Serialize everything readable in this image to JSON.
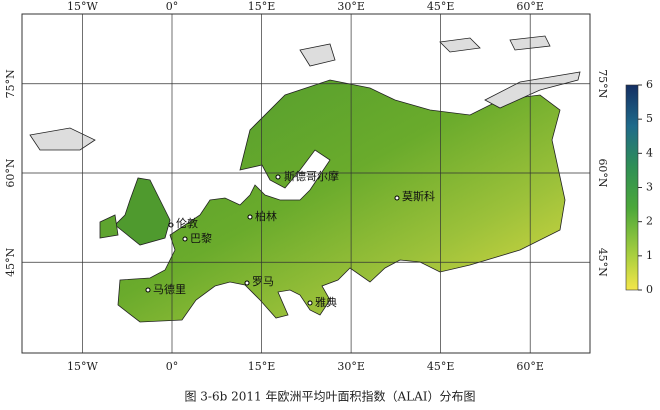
{
  "map": {
    "caption": "图 3-6b 2011 年欧洲平均叶面积指数（ALAI）分布图",
    "longitude_ticks": [
      {
        "value": -15,
        "label": "15°W"
      },
      {
        "value": 0,
        "label": "0°"
      },
      {
        "value": 15,
        "label": "15°E"
      },
      {
        "value": 30,
        "label": "30°E"
      },
      {
        "value": 45,
        "label": "45°E"
      },
      {
        "value": 60,
        "label": "60°E"
      }
    ],
    "latitude_ticks": [
      {
        "value": 75,
        "label": "75°N"
      },
      {
        "value": 60,
        "label": "60°N"
      },
      {
        "value": 45,
        "label": "45°N"
      }
    ],
    "colorbar": {
      "range": [
        0,
        6
      ],
      "ticks": [
        0,
        1,
        2,
        3,
        4,
        5,
        6
      ]
    },
    "cities": [
      "斯德哥尔摩",
      "莫斯科",
      "柏林",
      "伦敦",
      "巴黎",
      "马德里",
      "罗马",
      "雅典"
    ]
  }
}
